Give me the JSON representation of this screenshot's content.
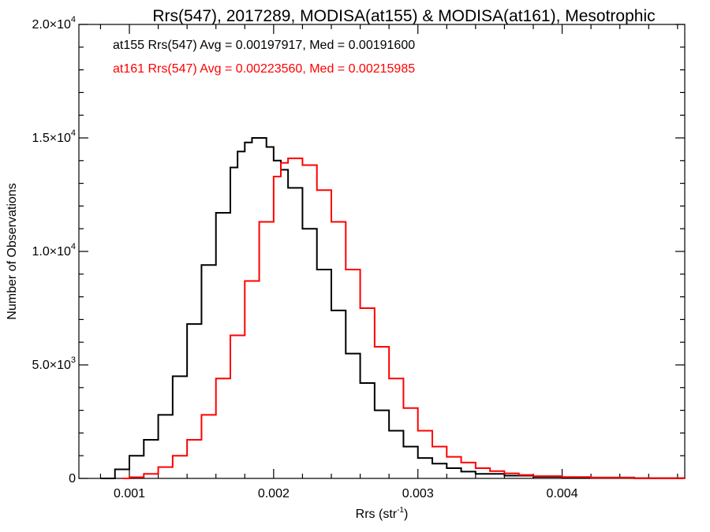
{
  "chart_data": {
    "type": "line",
    "title": "Rrs(547), 2017289, MODISA(at155) & MODISA(at161), Mesotrophic",
    "xlabel": "Rrs (str",
    "xlabel_sup": "-1",
    "xlabel_tail": ")",
    "ylabel": "Number of Observations",
    "xlim": [
      0.00065,
      0.00485
    ],
    "ylim": [
      0,
      20000
    ],
    "grid": false,
    "x_ticks": [
      {
        "value": 0.001,
        "label": "0.001"
      },
      {
        "value": 0.002,
        "label": "0.002"
      },
      {
        "value": 0.003,
        "label": "0.003"
      },
      {
        "value": 0.004,
        "label": "0.004"
      }
    ],
    "y_ticks": [
      {
        "value": 0,
        "label": "0",
        "sup": ""
      },
      {
        "value": 5000,
        "label": "5.0×10",
        "sup": "3"
      },
      {
        "value": 10000,
        "label": "1.0×10",
        "sup": "4"
      },
      {
        "value": 15000,
        "label": "1.5×10",
        "sup": "4"
      },
      {
        "value": 20000,
        "label": "2.0×10",
        "sup": "4"
      }
    ],
    "annotations": [
      {
        "text": "at155 Rrs(547) Avg = 0.00197917, Med = 0.00191600",
        "color": "#000000"
      },
      {
        "text": "at161 Rrs(547) Avg = 0.00223560, Med = 0.00215985",
        "color": "#ff0000"
      }
    ],
    "series": [
      {
        "color": "#000000",
        "x": [
          0.0008,
          0.0009,
          0.001,
          0.0011,
          0.0012,
          0.0013,
          0.0014,
          0.0015,
          0.0016,
          0.0017,
          0.00175,
          0.0018,
          0.00185,
          0.0019,
          0.00195,
          0.002,
          0.00205,
          0.0021,
          0.0022,
          0.0023,
          0.0024,
          0.0025,
          0.0026,
          0.0027,
          0.0028,
          0.0029,
          0.003,
          0.0031,
          0.0032,
          0.0033,
          0.0034,
          0.0036,
          0.0038,
          0.004,
          0.0045,
          0.00485
        ],
        "y": [
          0,
          400,
          1000,
          1700,
          2800,
          4500,
          6800,
          9400,
          11700,
          13700,
          14400,
          14800,
          15000,
          15000,
          14600,
          14000,
          13600,
          12800,
          11000,
          9200,
          7400,
          5500,
          4200,
          3000,
          2100,
          1400,
          900,
          650,
          450,
          300,
          200,
          120,
          70,
          40,
          10,
          0
        ]
      },
      {
        "color": "#ff0000",
        "x": [
          0.00095,
          0.001,
          0.0011,
          0.0012,
          0.0013,
          0.0014,
          0.0015,
          0.0016,
          0.0017,
          0.0018,
          0.0019,
          0.002,
          0.00205,
          0.0021,
          0.00215,
          0.0022,
          0.0023,
          0.0024,
          0.0025,
          0.0026,
          0.0027,
          0.0028,
          0.0029,
          0.003,
          0.0031,
          0.0032,
          0.0033,
          0.0034,
          0.0035,
          0.0036,
          0.0037,
          0.0038,
          0.004,
          0.0042,
          0.0045,
          0.00485
        ],
        "y": [
          0,
          50,
          200,
          500,
          1000,
          1700,
          2800,
          4400,
          6300,
          8700,
          11300,
          13300,
          13900,
          14100,
          14100,
          13800,
          12700,
          11300,
          9200,
          7500,
          5800,
          4400,
          3100,
          2100,
          1400,
          950,
          700,
          450,
          320,
          220,
          150,
          100,
          60,
          30,
          10,
          0
        ]
      }
    ]
  }
}
